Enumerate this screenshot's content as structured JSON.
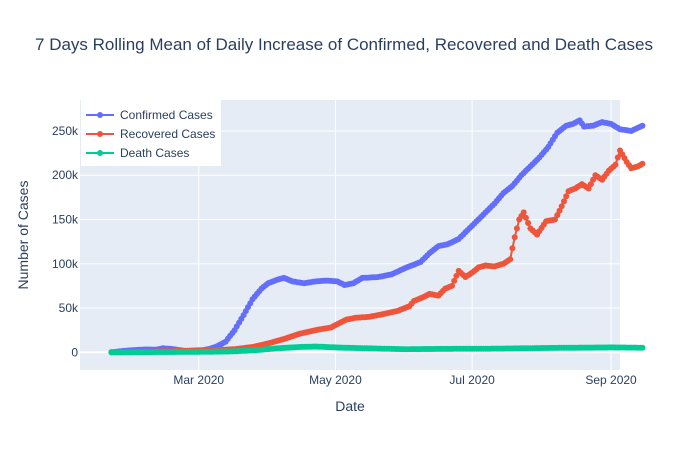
{
  "chart_data": {
    "type": "line",
    "title": "7 Days Rolling Mean of Daily Increase of Confirmed, Recovered and Death Cases",
    "xlabel": "Date",
    "ylabel": "Number of Cases",
    "xlim": [
      "2020-01-08",
      "2020-09-05"
    ],
    "ylim": [
      -20000,
      285000
    ],
    "x_ticks": [
      {
        "date": "2020-03-01",
        "label": "Mar 2020"
      },
      {
        "date": "2020-05-01",
        "label": "May 2020"
      },
      {
        "date": "2020-07-01",
        "label": "Jul 2020"
      },
      {
        "date": "2020-09-01",
        "label": "Sep 2020"
      }
    ],
    "y_ticks": [
      {
        "value": 0,
        "label": "0"
      },
      {
        "value": 50000,
        "label": "50k"
      },
      {
        "value": 100000,
        "label": "100k"
      },
      {
        "value": 150000,
        "label": "150k"
      },
      {
        "value": 200000,
        "label": "200k"
      },
      {
        "value": 250000,
        "label": "250k"
      }
    ],
    "grid": true,
    "legend_position": "top-left",
    "series": [
      {
        "name": "Confirmed Cases",
        "color": "#636efa",
        "points": [
          [
            "2020-01-22",
            0
          ],
          [
            "2020-01-27",
            1500
          ],
          [
            "2020-02-01",
            2500
          ],
          [
            "2020-02-06",
            3200
          ],
          [
            "2020-02-11",
            3000
          ],
          [
            "2020-02-14",
            4500
          ],
          [
            "2020-02-17",
            4000
          ],
          [
            "2020-02-20",
            3000
          ],
          [
            "2020-02-24",
            1500
          ],
          [
            "2020-02-28",
            2000
          ],
          [
            "2020-03-03",
            2500
          ],
          [
            "2020-03-06",
            4000
          ],
          [
            "2020-03-09",
            6500
          ],
          [
            "2020-03-13",
            12000
          ],
          [
            "2020-03-17",
            25000
          ],
          [
            "2020-03-21",
            42000
          ],
          [
            "2020-03-25",
            60000
          ],
          [
            "2020-03-29",
            72000
          ],
          [
            "2020-04-01",
            78000
          ],
          [
            "2020-04-05",
            82000
          ],
          [
            "2020-04-08",
            84000
          ],
          [
            "2020-04-12",
            80000
          ],
          [
            "2020-04-17",
            78000
          ],
          [
            "2020-04-22",
            80000
          ],
          [
            "2020-04-27",
            81000
          ],
          [
            "2020-05-02",
            80000
          ],
          [
            "2020-05-05",
            76000
          ],
          [
            "2020-05-09",
            78000
          ],
          [
            "2020-05-13",
            84000
          ],
          [
            "2020-05-20",
            85000
          ],
          [
            "2020-05-26",
            88000
          ],
          [
            "2020-06-02",
            96000
          ],
          [
            "2020-06-08",
            102000
          ],
          [
            "2020-06-12",
            112000
          ],
          [
            "2020-06-16",
            120000
          ],
          [
            "2020-06-20",
            122000
          ],
          [
            "2020-06-25",
            128000
          ],
          [
            "2020-06-29",
            138000
          ],
          [
            "2020-07-03",
            148000
          ],
          [
            "2020-07-07",
            158000
          ],
          [
            "2020-07-11",
            168000
          ],
          [
            "2020-07-15",
            180000
          ],
          [
            "2020-07-19",
            188000
          ],
          [
            "2020-07-23",
            200000
          ],
          [
            "2020-07-27",
            210000
          ],
          [
            "2020-07-31",
            220000
          ],
          [
            "2020-08-04",
            232000
          ],
          [
            "2020-08-08",
            248000
          ],
          [
            "2020-08-12",
            256000
          ],
          [
            "2020-08-15",
            258000
          ],
          [
            "2020-08-18",
            262000
          ],
          [
            "2020-08-20",
            255000
          ],
          [
            "2020-08-24",
            256000
          ],
          [
            "2020-08-28",
            260000
          ],
          [
            "2020-09-01",
            258000
          ],
          [
            "2020-09-05",
            252000
          ],
          [
            "2020-09-10",
            250000
          ],
          [
            "2020-09-15",
            256000
          ]
        ]
      },
      {
        "name": "Recovered Cases",
        "color": "#ef553b",
        "points": [
          [
            "2020-01-22",
            0
          ],
          [
            "2020-02-01",
            300
          ],
          [
            "2020-02-11",
            800
          ],
          [
            "2020-02-21",
            1500
          ],
          [
            "2020-03-01",
            2000
          ],
          [
            "2020-03-09",
            2500
          ],
          [
            "2020-03-17",
            3500
          ],
          [
            "2020-03-25",
            6000
          ],
          [
            "2020-04-01",
            10000
          ],
          [
            "2020-04-08",
            15000
          ],
          [
            "2020-04-15",
            21000
          ],
          [
            "2020-04-22",
            25000
          ],
          [
            "2020-04-29",
            28000
          ],
          [
            "2020-05-02",
            32000
          ],
          [
            "2020-05-06",
            37000
          ],
          [
            "2020-05-10",
            39000
          ],
          [
            "2020-05-16",
            40000
          ],
          [
            "2020-05-22",
            43000
          ],
          [
            "2020-05-29",
            47000
          ],
          [
            "2020-06-03",
            52000
          ],
          [
            "2020-06-05",
            58000
          ],
          [
            "2020-06-09",
            62000
          ],
          [
            "2020-06-12",
            66000
          ],
          [
            "2020-06-16",
            64000
          ],
          [
            "2020-06-19",
            72000
          ],
          [
            "2020-06-22",
            75000
          ],
          [
            "2020-06-25",
            92000
          ],
          [
            "2020-06-28",
            85000
          ],
          [
            "2020-07-01",
            90000
          ],
          [
            "2020-07-04",
            96000
          ],
          [
            "2020-07-07",
            98000
          ],
          [
            "2020-07-11",
            97000
          ],
          [
            "2020-07-15",
            100000
          ],
          [
            "2020-07-18",
            105000
          ],
          [
            "2020-07-20",
            130000
          ],
          [
            "2020-07-22",
            150000
          ],
          [
            "2020-07-24",
            158000
          ],
          [
            "2020-07-27",
            140000
          ],
          [
            "2020-07-30",
            133000
          ],
          [
            "2020-08-03",
            148000
          ],
          [
            "2020-08-07",
            150000
          ],
          [
            "2020-08-10",
            165000
          ],
          [
            "2020-08-13",
            182000
          ],
          [
            "2020-08-16",
            185000
          ],
          [
            "2020-08-19",
            190000
          ],
          [
            "2020-08-22",
            185000
          ],
          [
            "2020-08-25",
            200000
          ],
          [
            "2020-08-28",
            195000
          ],
          [
            "2020-08-31",
            205000
          ],
          [
            "2020-09-03",
            212000
          ],
          [
            "2020-09-05",
            228000
          ],
          [
            "2020-09-08",
            215000
          ],
          [
            "2020-09-10",
            208000
          ],
          [
            "2020-09-13",
            210000
          ],
          [
            "2020-09-15",
            213000
          ]
        ]
      },
      {
        "name": "Death Cases",
        "color": "#00cc96",
        "points": [
          [
            "2020-01-22",
            0
          ],
          [
            "2020-02-11",
            300
          ],
          [
            "2020-03-01",
            500
          ],
          [
            "2020-03-16",
            1000
          ],
          [
            "2020-03-27",
            2500
          ],
          [
            "2020-04-05",
            4500
          ],
          [
            "2020-04-15",
            6000
          ],
          [
            "2020-04-22",
            6500
          ],
          [
            "2020-05-01",
            5500
          ],
          [
            "2020-05-15",
            4500
          ],
          [
            "2020-06-01",
            3500
          ],
          [
            "2020-06-15",
            3800
          ],
          [
            "2020-07-01",
            4000
          ],
          [
            "2020-07-15",
            4200
          ],
          [
            "2020-08-01",
            4800
          ],
          [
            "2020-08-15",
            5200
          ],
          [
            "2020-09-01",
            5500
          ],
          [
            "2020-09-15",
            5200
          ]
        ]
      }
    ]
  }
}
